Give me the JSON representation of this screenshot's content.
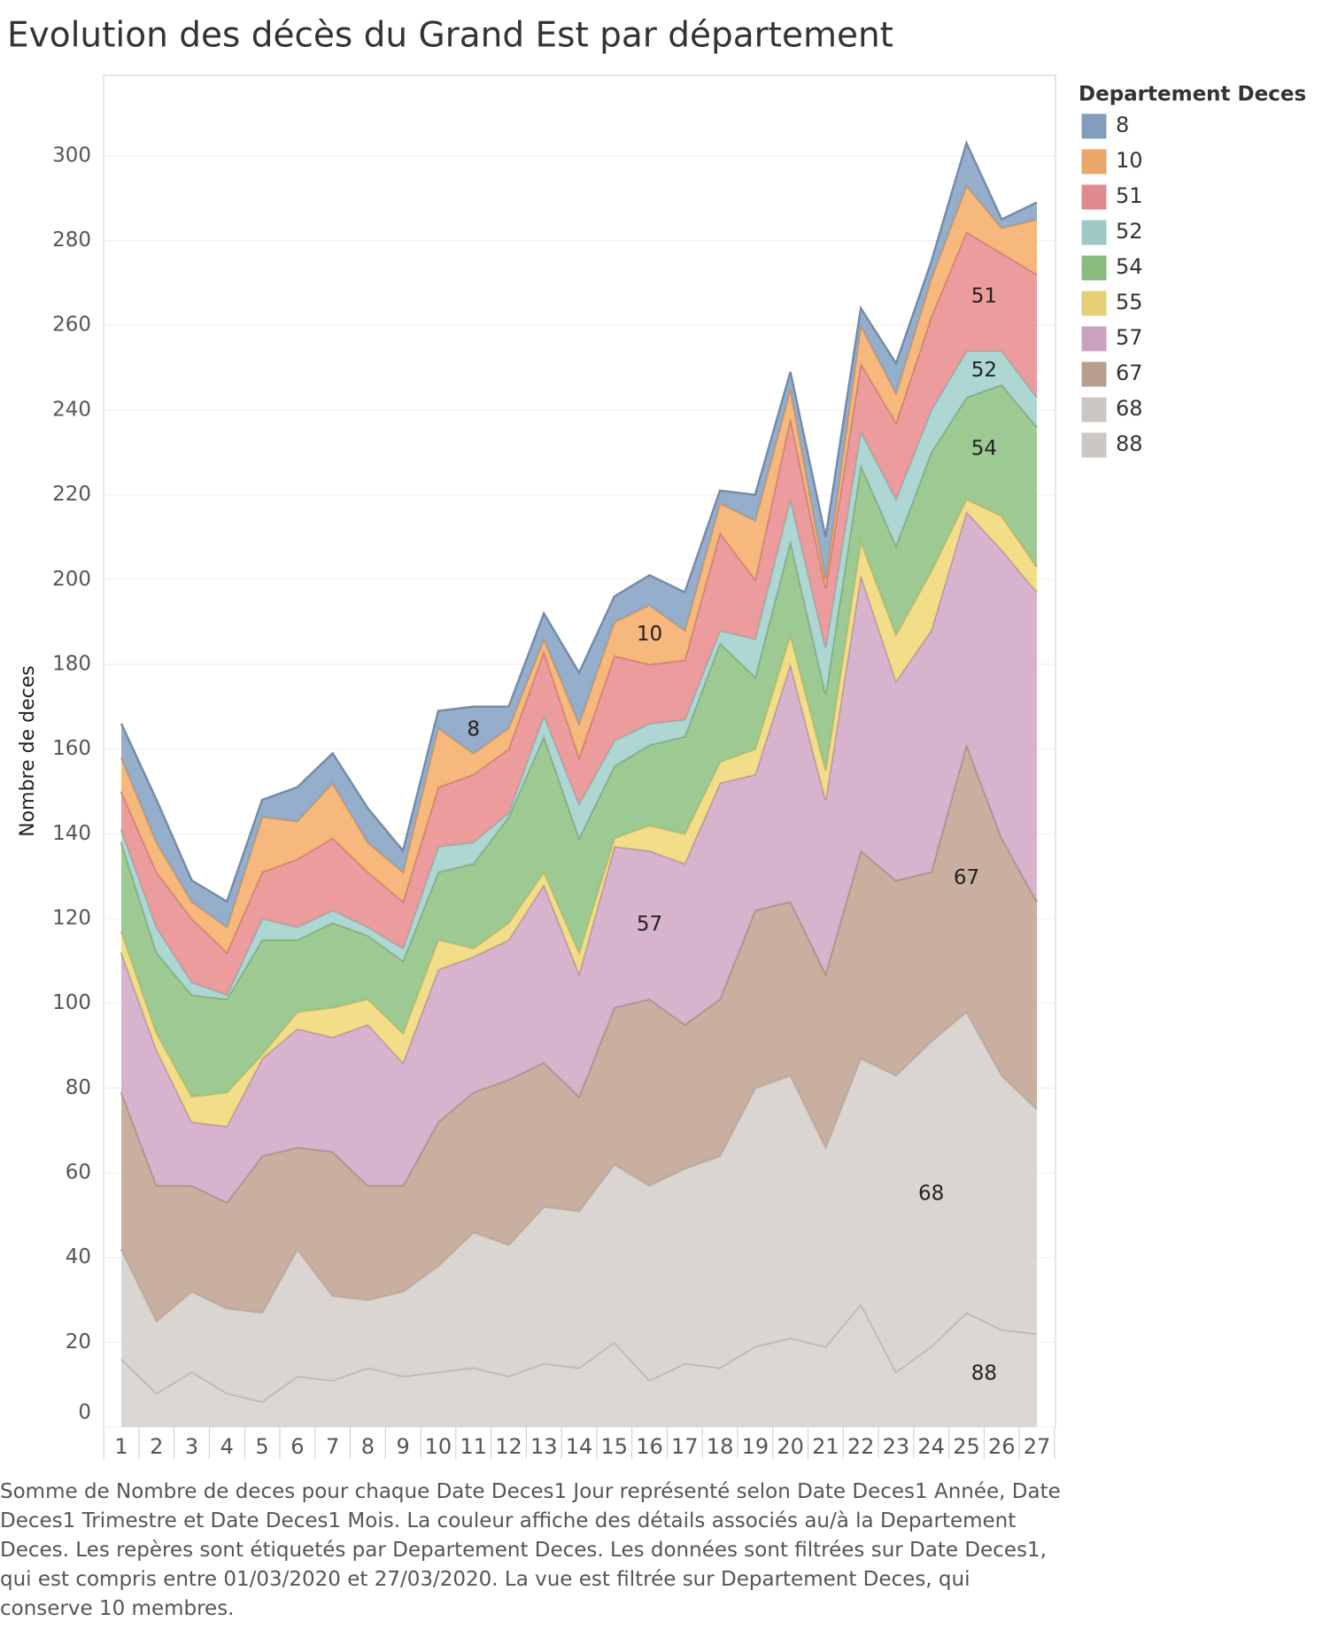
{
  "chart_data": {
    "type": "stacked_area",
    "title": "Evolution des décès du Grand Est par département",
    "y_label": "Nombre de deces",
    "legend_title": "Departement Deces",
    "legend": "right",
    "grid": true,
    "categories": [
      "1",
      "2",
      "3",
      "4",
      "5",
      "6",
      "7",
      "8",
      "9",
      "10",
      "11",
      "12",
      "13",
      "14",
      "15",
      "16",
      "17",
      "18",
      "19",
      "20",
      "21",
      "22",
      "23",
      "24",
      "25",
      "26",
      "27"
    ],
    "ylim": [
      0,
      319
    ],
    "yticks": [
      0,
      20,
      40,
      60,
      80,
      100,
      120,
      140,
      160,
      180,
      200,
      220,
      240,
      260,
      280,
      300
    ],
    "series": [
      {
        "name": "8",
        "color": "#8aa5c6",
        "values": [
          8,
          10,
          5,
          6,
          4,
          8,
          7,
          8,
          5,
          4,
          11,
          5,
          6,
          12,
          6,
          7,
          9,
          3,
          6,
          4,
          10,
          4,
          7,
          4,
          10,
          2,
          4
        ]
      },
      {
        "name": "10",
        "color": "#f5b06e",
        "values": [
          8,
          7,
          4,
          6,
          13,
          9,
          13,
          7,
          7,
          14,
          5,
          5,
          3,
          8,
          8,
          14,
          7,
          7,
          14,
          7,
          2,
          9,
          7,
          9,
          11,
          6,
          13
        ]
      },
      {
        "name": "51",
        "color": "#eb9193",
        "values": [
          9,
          13,
          15,
          10,
          11,
          16,
          17,
          13,
          11,
          14,
          16,
          15,
          15,
          11,
          20,
          14,
          14,
          23,
          14,
          19,
          14,
          16,
          18,
          22,
          28,
          23,
          29
        ]
      },
      {
        "name": "52",
        "color": "#a5d3cf",
        "values": [
          3,
          6,
          3,
          1,
          5,
          3,
          3,
          2,
          3,
          6,
          5,
          1,
          5,
          8,
          6,
          5,
          4,
          3,
          9,
          10,
          11,
          8,
          11,
          10,
          11,
          8,
          7
        ]
      },
      {
        "name": "54",
        "color": "#92c486",
        "values": [
          21,
          19,
          24,
          22,
          27,
          17,
          20,
          15,
          17,
          16,
          20,
          25,
          32,
          27,
          17,
          19,
          23,
          28,
          17,
          22,
          18,
          18,
          21,
          28,
          24,
          31,
          33
        ]
      },
      {
        "name": "55",
        "color": "#f1d97c",
        "values": [
          5,
          4,
          6,
          8,
          1,
          4,
          7,
          6,
          7,
          7,
          2,
          4,
          3,
          5,
          2,
          6,
          7,
          5,
          6,
          7,
          7,
          8,
          11,
          14,
          3,
          8,
          6
        ]
      },
      {
        "name": "57",
        "color": "#d3abc8",
        "values": [
          33,
          32,
          15,
          18,
          23,
          28,
          27,
          38,
          29,
          36,
          32,
          33,
          42,
          29,
          38,
          35,
          38,
          51,
          32,
          56,
          41,
          65,
          47,
          57,
          55,
          68,
          73
        ]
      },
      {
        "name": "67",
        "color": "#c3a695",
        "values": [
          37,
          32,
          25,
          25,
          37,
          24,
          34,
          27,
          25,
          34,
          33,
          39,
          34,
          27,
          37,
          44,
          34,
          37,
          42,
          41,
          41,
          49,
          46,
          40,
          63,
          56,
          49
        ]
      },
      {
        "name": "68",
        "color": "#d6d0cc",
        "values": [
          26,
          17,
          19,
          20,
          21,
          30,
          20,
          16,
          20,
          25,
          32,
          31,
          37,
          37,
          42,
          46,
          46,
          50,
          61,
          62,
          47,
          58,
          70,
          72,
          71,
          60,
          53
        ]
      },
      {
        "name": "88",
        "color": "#d6d1cd",
        "values": [
          16,
          8,
          13,
          8,
          6,
          12,
          11,
          14,
          12,
          13,
          14,
          12,
          15,
          14,
          20,
          11,
          15,
          14,
          19,
          21,
          19,
          29,
          13,
          19,
          27,
          23,
          22
        ]
      }
    ],
    "note": "Somme de Nombre de deces pour chaque Date Deces1 Jour représenté selon Date Deces1 Année, Date Deces1 Trimestre et Date Deces1 Mois.  La couleur affiche des détails associés au/à la Departement Deces. Les repères sont étiquetés par Departement Deces. Les données sont filtrées sur Date Deces1, qui est compris entre 01/03/2020 et 27/03/2020. La vue est filtrée sur Departement Deces, qui conserve 10 membres."
  }
}
